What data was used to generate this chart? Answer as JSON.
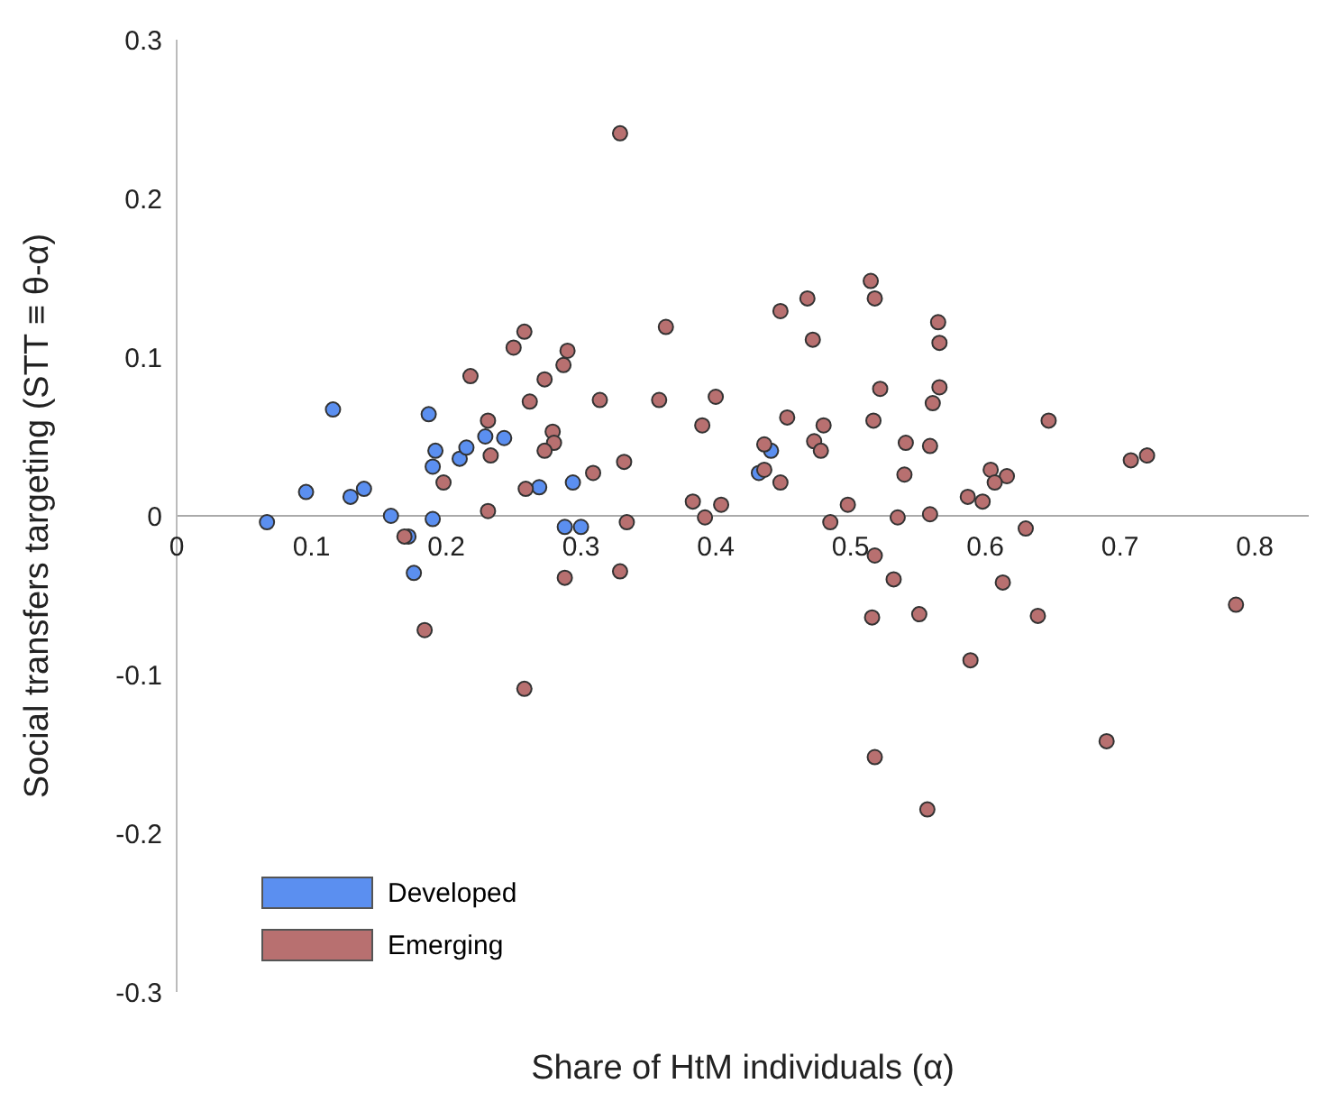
{
  "chart_data": {
    "type": "scatter",
    "xlabel": "Share of HtM individuals (α)",
    "ylabel": "Social transfers targeting (STT ≡ θ-α)",
    "xlim": [
      0,
      0.84
    ],
    "xticks": [
      0,
      0.1,
      0.2,
      0.3,
      0.4,
      0.5,
      0.6,
      0.7,
      0.8
    ],
    "ylim": [
      -0.3,
      0.3
    ],
    "yticks": [
      -0.3,
      -0.2,
      -0.1,
      0,
      0.1,
      0.2,
      0.3
    ],
    "grid": false,
    "legend": "bottom left",
    "marker": "circle",
    "series": [
      {
        "name": "Developed",
        "color": "#5b8ff0",
        "x": [
          0.067,
          0.096,
          0.116,
          0.129,
          0.139,
          0.159,
          0.172,
          0.176,
          0.187,
          0.19,
          0.192,
          0.19,
          0.21,
          0.215,
          0.229,
          0.243,
          0.269,
          0.288,
          0.294,
          0.3,
          0.432,
          0.441
        ],
        "values": [
          -0.004,
          0.015,
          0.067,
          0.012,
          0.017,
          0.0,
          -0.013,
          -0.036,
          0.064,
          0.031,
          0.041,
          -0.002,
          0.036,
          0.043,
          0.05,
          0.049,
          0.018,
          -0.007,
          0.021,
          -0.007,
          0.027,
          0.041
        ]
      },
      {
        "name": "Emerging",
        "color": "#b87070",
        "x": [
          0.258,
          0.25,
          0.29,
          0.218,
          0.287,
          0.273,
          0.262,
          0.231,
          0.279,
          0.28,
          0.273,
          0.233,
          0.198,
          0.259,
          0.231,
          0.169,
          0.288,
          0.184,
          0.258,
          0.329,
          0.363,
          0.448,
          0.468,
          0.515,
          0.518,
          0.472,
          0.565,
          0.566,
          0.314,
          0.358,
          0.4,
          0.522,
          0.566,
          0.561,
          0.39,
          0.453,
          0.48,
          0.517,
          0.436,
          0.473,
          0.478,
          0.541,
          0.559,
          0.436,
          0.448,
          0.54,
          0.309,
          0.332,
          0.383,
          0.404,
          0.498,
          0.587,
          0.334,
          0.392,
          0.485,
          0.535,
          0.559,
          0.329,
          0.518,
          0.532,
          0.516,
          0.551,
          0.589,
          0.518,
          0.557,
          0.647,
          0.708,
          0.72,
          0.604,
          0.616,
          0.607,
          0.598,
          0.63,
          0.613,
          0.639,
          0.786,
          0.69
        ],
        "values": [
          0.116,
          0.106,
          0.104,
          0.088,
          0.095,
          0.086,
          0.072,
          0.06,
          0.053,
          0.046,
          0.041,
          0.038,
          0.021,
          0.017,
          0.003,
          -0.013,
          -0.039,
          -0.072,
          -0.109,
          0.241,
          0.119,
          0.129,
          0.137,
          0.148,
          0.137,
          0.111,
          0.122,
          0.109,
          0.073,
          0.073,
          0.075,
          0.08,
          0.081,
          0.071,
          0.057,
          0.062,
          0.057,
          0.06,
          0.045,
          0.047,
          0.041,
          0.046,
          0.044,
          0.029,
          0.021,
          0.026,
          0.027,
          0.034,
          0.009,
          0.007,
          0.007,
          0.012,
          -0.004,
          -0.001,
          -0.004,
          -0.001,
          0.001,
          -0.035,
          -0.025,
          -0.04,
          -0.064,
          -0.062,
          -0.091,
          -0.152,
          -0.185,
          0.06,
          0.035,
          0.038,
          0.029,
          0.025,
          0.021,
          0.009,
          -0.008,
          -0.042,
          -0.063,
          -0.056,
          -0.142
        ]
      }
    ]
  }
}
